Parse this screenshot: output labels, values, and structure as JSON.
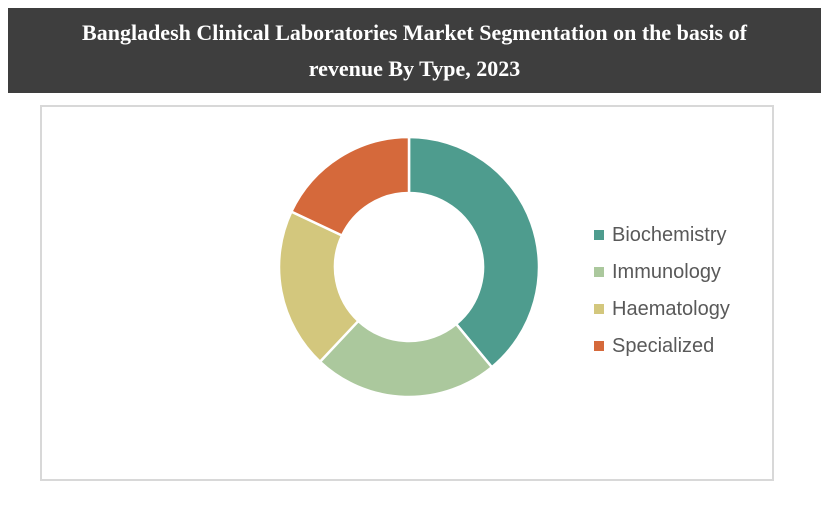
{
  "page": {
    "background": "#FFFFFF",
    "panel_border_color": "#D8D8D8"
  },
  "header": {
    "title": "Bangladesh Clinical Laboratories Market Segmentation on the basis of revenue By Type, 2023",
    "lines": [
      "Bangladesh Clinical Laboratories Market Segmentation on the basis of",
      "revenue By Type, 2023"
    ],
    "background": "#3E3E3E",
    "text_color": "#FFFFFF"
  },
  "chart_data": {
    "type": "pie",
    "subtype": "donut",
    "title": "Bangladesh Clinical Laboratories Market Segmentation on the basis of revenue By Type, 2023",
    "categories": [
      "Biochemistry",
      "Immunology",
      "Haematology",
      "Specialized"
    ],
    "values": [
      39,
      23,
      20,
      18
    ],
    "value_unit": "percent share (estimated from arc angles; no data labels shown)",
    "colors": [
      "#4E9C8E",
      "#ABC89D",
      "#D3C77D",
      "#D5693B"
    ],
    "start_angle_deg": 0,
    "direction": "clockwise",
    "inner_radius_ratio": 0.57,
    "segment_gap_color": "#FFFFFF",
    "legend_position": "right",
    "data_labels": false
  },
  "legend": {
    "text_color": "#595959",
    "items": [
      {
        "label": "Biochemistry",
        "color": "#4E9C8E"
      },
      {
        "label": "Immunology",
        "color": "#ABC89D"
      },
      {
        "label": "Haematology",
        "color": "#D3C77D"
      },
      {
        "label": "Specialized",
        "color": "#D5693B"
      }
    ]
  }
}
